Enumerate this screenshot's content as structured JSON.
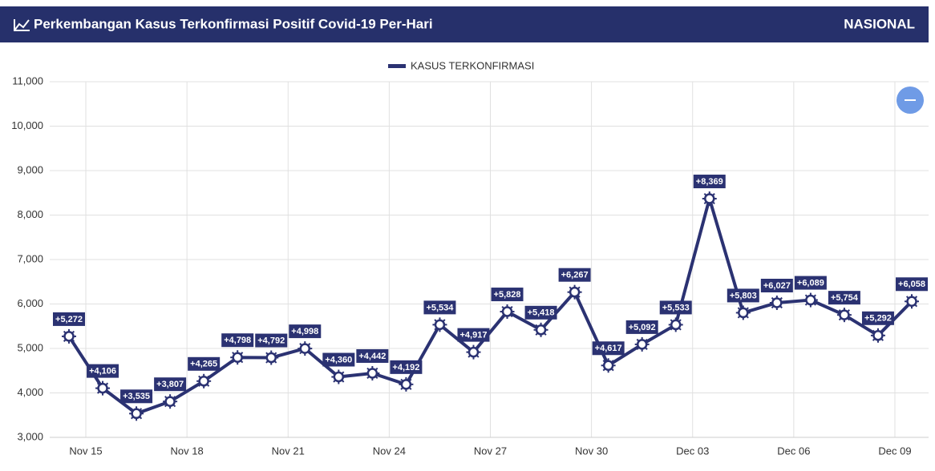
{
  "header": {
    "title": "Perkembangan Kasus Terkonfirmasi Positif Covid-19 Per-Hari",
    "badge": "NASIONAL"
  },
  "chart_data": {
    "type": "line",
    "categories": [
      "Nov 15",
      null,
      null,
      "Nov 18",
      null,
      null,
      "Nov 21",
      null,
      null,
      "Nov 24",
      null,
      null,
      "Nov 27",
      null,
      null,
      "Nov 30",
      null,
      null,
      "Dec 03",
      null,
      null,
      "Dec 06",
      null,
      null,
      "Dec 09",
      null
    ],
    "series": [
      {
        "name": "KASUS TERKONFIRMASI",
        "color": "#2b3272",
        "values": [
          5272,
          4106,
          3535,
          3807,
          4265,
          4798,
          4792,
          4998,
          4360,
          4442,
          4192,
          5534,
          4917,
          5828,
          5418,
          6267,
          4617,
          5092,
          5533,
          8369,
          5803,
          6027,
          6089,
          5754,
          5292,
          6058
        ],
        "value_labels": [
          "+5,272",
          "+4,106",
          "+3,535",
          "+3,807",
          "+4,265",
          "+4,798",
          "+4,792",
          "+4,998",
          "+4,360",
          "+4,442",
          "+4,192",
          "+5,534",
          "+4,917",
          "+5,828",
          "+5,418",
          "+6,267",
          "+4,617",
          "+5,092",
          "+5,533",
          "+8,369",
          "+5,803",
          "+6,027",
          "+6,089",
          "+5,754",
          "+5,292",
          "+6,058"
        ]
      }
    ],
    "ylim": [
      3000,
      11000
    ],
    "yticks": [
      {
        "value": 3000,
        "label": "3,000"
      },
      {
        "value": 4000,
        "label": "4,000"
      },
      {
        "value": 5000,
        "label": "5,000"
      },
      {
        "value": 6000,
        "label": "6,000"
      },
      {
        "value": 7000,
        "label": "7,000"
      },
      {
        "value": 8000,
        "label": "8,000"
      },
      {
        "value": 9000,
        "label": "9,000"
      },
      {
        "value": 10000,
        "label": "10,000"
      },
      {
        "value": 11000,
        "label": "11,000"
      }
    ],
    "grid": true,
    "legend": "top"
  }
}
